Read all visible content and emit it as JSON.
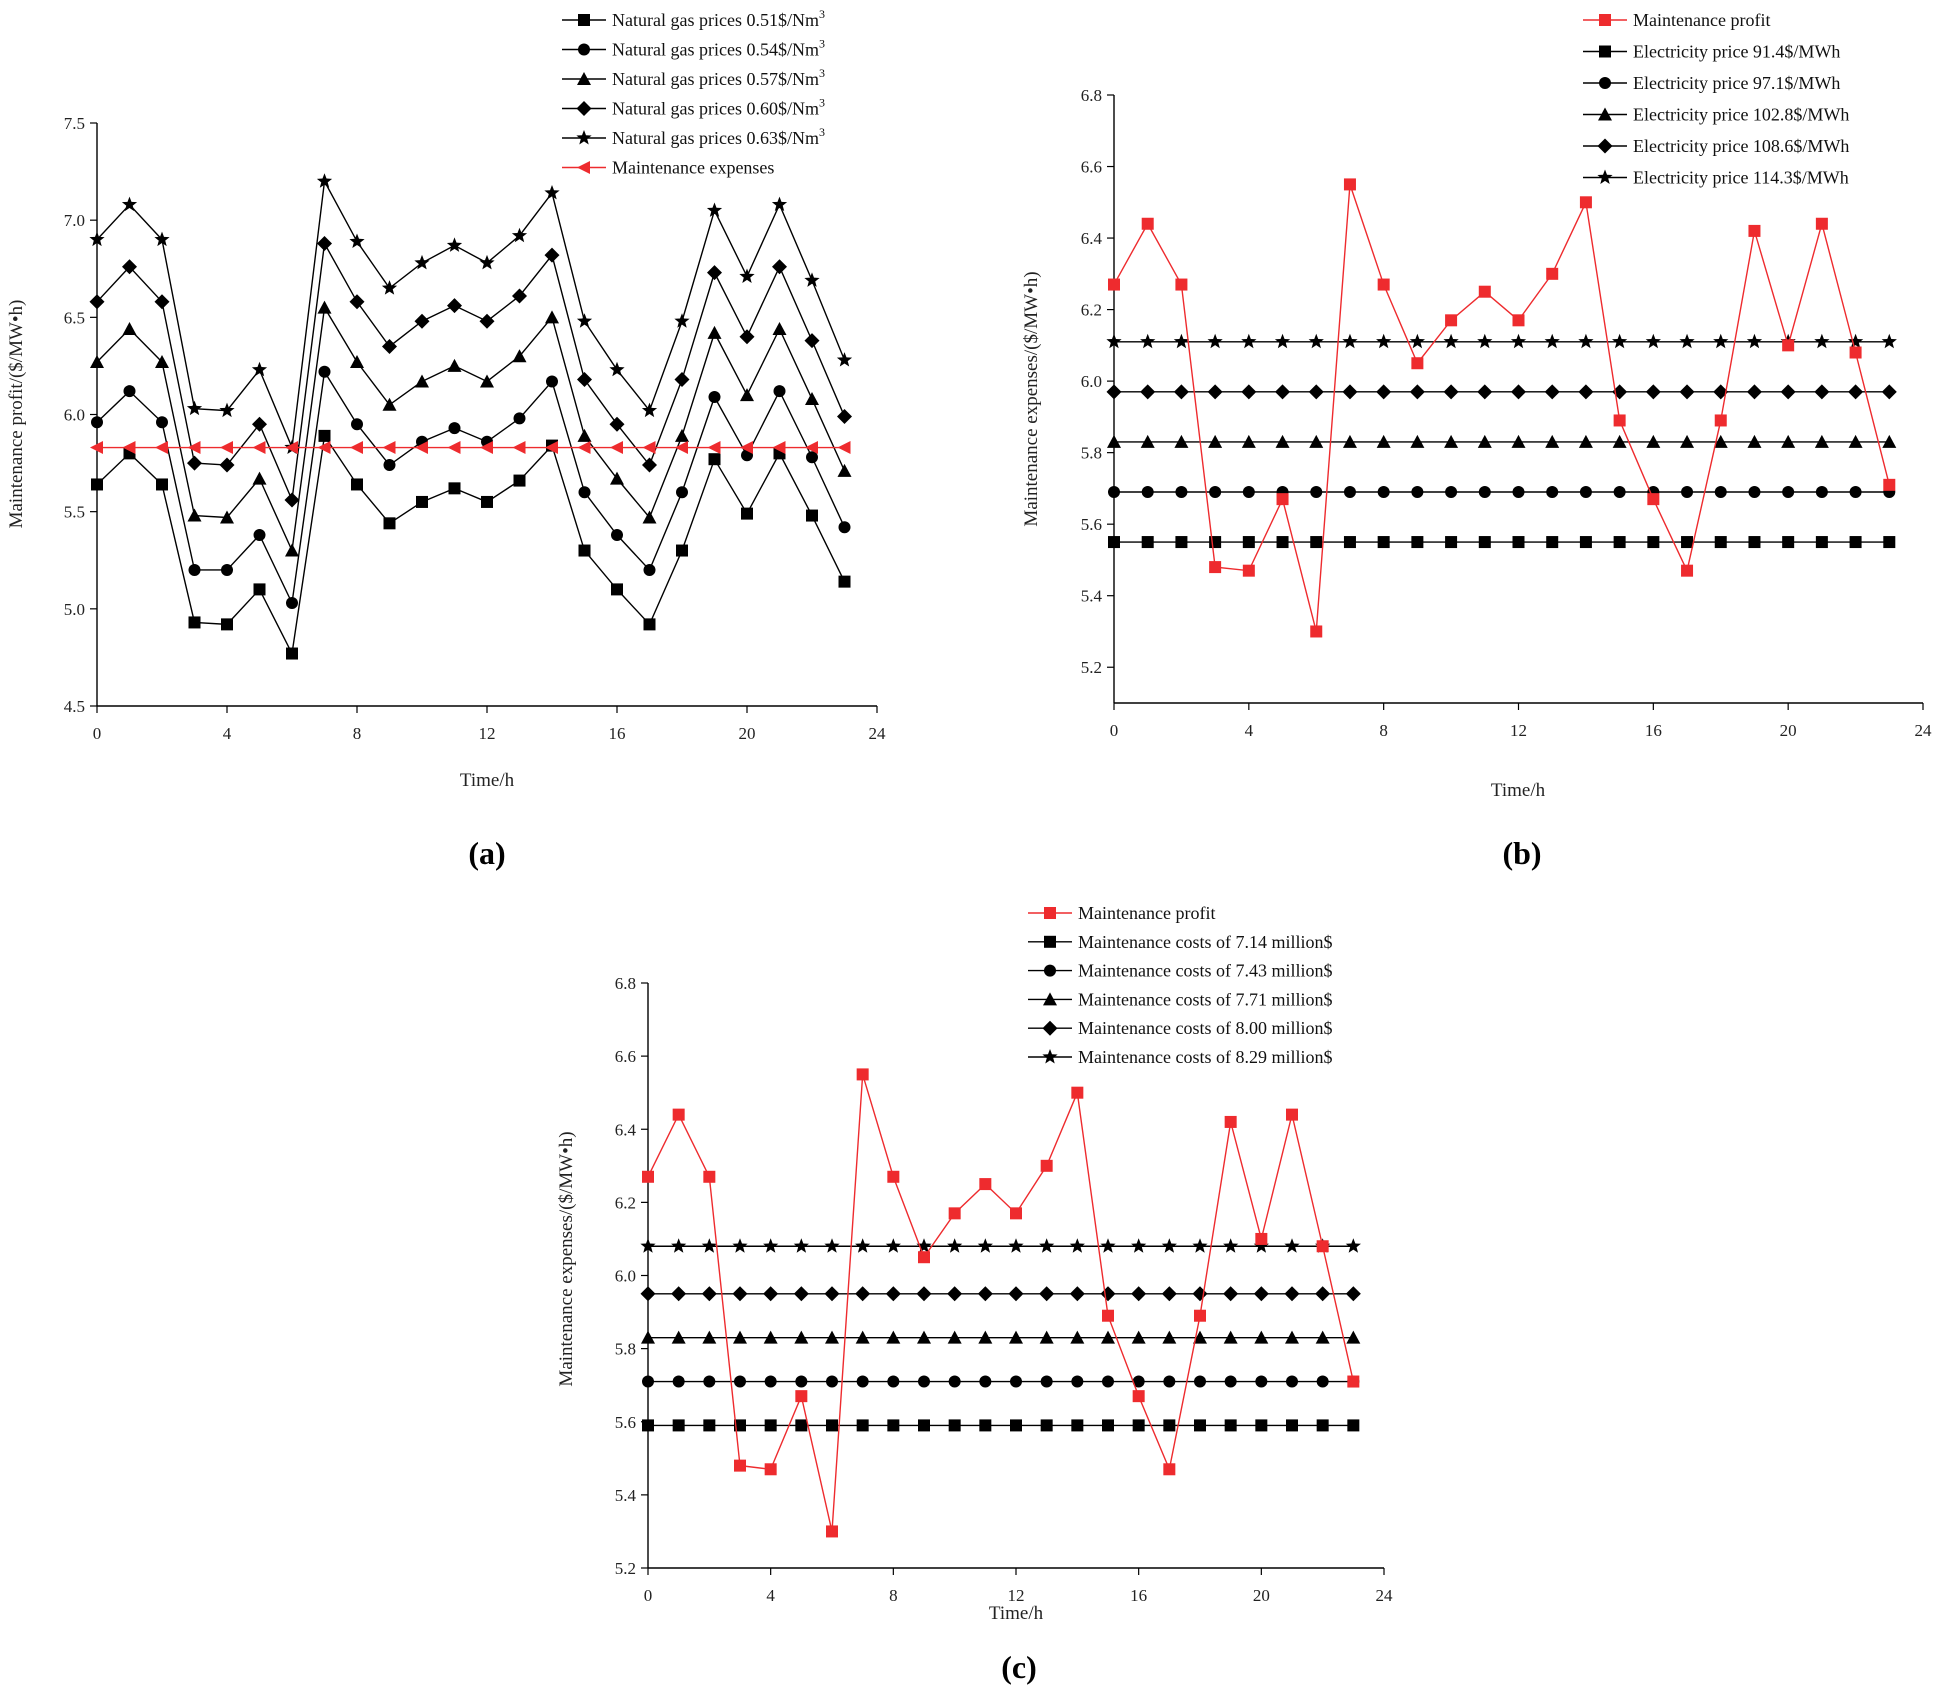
{
  "colors": {
    "black": "#000000",
    "red": "#ee2b2e"
  },
  "chart_data": [
    {
      "id": "a",
      "type": "line",
      "caption": "(a)",
      "xlabel": "Time/h",
      "ylabel": "Maintenance profit/($/MW•h)",
      "xlim": [
        0,
        24
      ],
      "ylim": [
        4.5,
        7.5
      ],
      "xticks": [
        "0",
        "4",
        "8",
        "12",
        "16",
        "20",
        "24"
      ],
      "yticks": [
        "4.5",
        "5.0",
        "5.5",
        "6.0",
        "6.5",
        "7.0",
        "7.5"
      ],
      "legend_position": "top",
      "x": [
        0,
        1,
        2,
        3,
        4,
        5,
        6,
        7,
        8,
        9,
        10,
        11,
        12,
        13,
        14,
        15,
        16,
        17,
        18,
        19,
        20,
        21,
        22,
        23
      ],
      "series": [
        {
          "name": "Natural gas prices 0.51$/Nm",
          "sup": "3",
          "marker": "square",
          "color": "#000000",
          "values": [
            5.64,
            5.8,
            5.64,
            4.93,
            4.92,
            5.1,
            4.77,
            5.89,
            5.64,
            5.44,
            5.55,
            5.62,
            5.55,
            5.66,
            5.84,
            5.3,
            5.1,
            4.92,
            5.3,
            5.77,
            5.49,
            5.8,
            5.48,
            5.14
          ]
        },
        {
          "name": "Natural gas prices 0.54$/Nm",
          "sup": "3",
          "marker": "circle",
          "color": "#000000",
          "values": [
            5.96,
            6.12,
            5.96,
            5.2,
            5.2,
            5.38,
            5.03,
            6.22,
            5.95,
            5.74,
            5.86,
            5.93,
            5.86,
            5.98,
            6.17,
            5.6,
            5.38,
            5.2,
            5.6,
            6.09,
            5.79,
            6.12,
            5.78,
            5.42
          ]
        },
        {
          "name": "Natural gas prices 0.57$/Nm",
          "sup": "3",
          "marker": "triangle",
          "color": "#000000",
          "values": [
            6.27,
            6.44,
            6.27,
            5.48,
            5.47,
            5.67,
            5.3,
            6.55,
            6.27,
            6.05,
            6.17,
            6.25,
            6.17,
            6.3,
            6.5,
            5.89,
            5.67,
            5.47,
            5.89,
            6.42,
            6.1,
            6.44,
            6.08,
            5.71
          ]
        },
        {
          "name": "Natural gas prices 0.60$/Nm",
          "sup": "3",
          "marker": "diamond",
          "color": "#000000",
          "values": [
            6.58,
            6.76,
            6.58,
            5.75,
            5.74,
            5.95,
            5.56,
            6.88,
            6.58,
            6.35,
            6.48,
            6.56,
            6.48,
            6.61,
            6.82,
            6.18,
            5.95,
            5.74,
            6.18,
            6.73,
            6.4,
            6.76,
            6.38,
            5.99
          ]
        },
        {
          "name": "Natural gas prices 0.63$/Nm",
          "sup": "3",
          "marker": "star",
          "color": "#000000",
          "values": [
            6.9,
            7.08,
            6.9,
            6.03,
            6.02,
            6.23,
            5.83,
            7.2,
            6.89,
            6.65,
            6.78,
            6.87,
            6.78,
            6.92,
            7.14,
            6.48,
            6.23,
            6.02,
            6.48,
            7.05,
            6.71,
            7.08,
            6.69,
            6.28
          ]
        },
        {
          "name": "Maintenance expenses",
          "sup": "",
          "marker": "triangle-left",
          "color": "#ee2b2e",
          "values": [
            5.83,
            5.83,
            5.83,
            5.83,
            5.83,
            5.83,
            5.83,
            5.83,
            5.83,
            5.83,
            5.83,
            5.83,
            5.83,
            5.83,
            5.83,
            5.83,
            5.83,
            5.83,
            5.83,
            5.83,
            5.83,
            5.83,
            5.83,
            5.83
          ]
        }
      ]
    },
    {
      "id": "b",
      "type": "line",
      "caption": "(b)",
      "xlabel": "Time/h",
      "ylabel": "Maintenance expenses/($/MW•h)",
      "xlim": [
        0,
        24
      ],
      "ylim": [
        5.1,
        6.8
      ],
      "xticks": [
        "0",
        "4",
        "8",
        "12",
        "16",
        "20",
        "24"
      ],
      "yticks": [
        "5.2",
        "5.4",
        "5.6",
        "5.8",
        "6.0",
        "6.2",
        "6.4",
        "6.6",
        "6.8"
      ],
      "legend_position": "top-right",
      "x": [
        0,
        1,
        2,
        3,
        4,
        5,
        6,
        7,
        8,
        9,
        10,
        11,
        12,
        13,
        14,
        15,
        16,
        17,
        18,
        19,
        20,
        21,
        22,
        23
      ],
      "series": [
        {
          "name": "Maintenance profit",
          "sup": "",
          "marker": "square",
          "color": "#ee2b2e",
          "values": [
            6.27,
            6.44,
            6.27,
            5.48,
            5.47,
            5.67,
            5.3,
            6.55,
            6.27,
            6.05,
            6.17,
            6.25,
            6.17,
            6.3,
            6.5,
            5.89,
            5.67,
            5.47,
            5.89,
            6.42,
            6.1,
            6.44,
            6.08,
            5.71
          ]
        },
        {
          "name": "Electricity price 91.4$/MWh",
          "sup": "",
          "marker": "square",
          "color": "#000000",
          "values": [
            5.55,
            5.55,
            5.55,
            5.55,
            5.55,
            5.55,
            5.55,
            5.55,
            5.55,
            5.55,
            5.55,
            5.55,
            5.55,
            5.55,
            5.55,
            5.55,
            5.55,
            5.55,
            5.55,
            5.55,
            5.55,
            5.55,
            5.55,
            5.55
          ]
        },
        {
          "name": "Electricity price 97.1$/MWh",
          "sup": "",
          "marker": "circle",
          "color": "#000000",
          "values": [
            5.69,
            5.69,
            5.69,
            5.69,
            5.69,
            5.69,
            5.69,
            5.69,
            5.69,
            5.69,
            5.69,
            5.69,
            5.69,
            5.69,
            5.69,
            5.69,
            5.69,
            5.69,
            5.69,
            5.69,
            5.69,
            5.69,
            5.69,
            5.69
          ]
        },
        {
          "name": "Electricity price 102.8$/MWh",
          "sup": "",
          "marker": "triangle",
          "color": "#000000",
          "values": [
            5.83,
            5.83,
            5.83,
            5.83,
            5.83,
            5.83,
            5.83,
            5.83,
            5.83,
            5.83,
            5.83,
            5.83,
            5.83,
            5.83,
            5.83,
            5.83,
            5.83,
            5.83,
            5.83,
            5.83,
            5.83,
            5.83,
            5.83,
            5.83
          ]
        },
        {
          "name": "Electricity price 108.6$/MWh",
          "sup": "",
          "marker": "diamond",
          "color": "#000000",
          "values": [
            5.97,
            5.97,
            5.97,
            5.97,
            5.97,
            5.97,
            5.97,
            5.97,
            5.97,
            5.97,
            5.97,
            5.97,
            5.97,
            5.97,
            5.97,
            5.97,
            5.97,
            5.97,
            5.97,
            5.97,
            5.97,
            5.97,
            5.97,
            5.97
          ]
        },
        {
          "name": "Electricity price 114.3$/MWh",
          "sup": "",
          "marker": "star",
          "color": "#000000",
          "values": [
            6.11,
            6.11,
            6.11,
            6.11,
            6.11,
            6.11,
            6.11,
            6.11,
            6.11,
            6.11,
            6.11,
            6.11,
            6.11,
            6.11,
            6.11,
            6.11,
            6.11,
            6.11,
            6.11,
            6.11,
            6.11,
            6.11,
            6.11,
            6.11
          ]
        }
      ]
    },
    {
      "id": "c",
      "type": "line",
      "caption": "(c)",
      "xlabel": "Time/h",
      "ylabel": "Maintenance expenses/($/MW•h)",
      "xlim": [
        0,
        24
      ],
      "ylim": [
        5.2,
        6.8
      ],
      "xticks": [
        "0",
        "4",
        "8",
        "12",
        "16",
        "20",
        "24"
      ],
      "yticks": [
        "5.2",
        "5.4",
        "5.6",
        "5.8",
        "6.0",
        "6.2",
        "6.4",
        "6.6",
        "6.8"
      ],
      "legend_position": "top-right",
      "x": [
        0,
        1,
        2,
        3,
        4,
        5,
        6,
        7,
        8,
        9,
        10,
        11,
        12,
        13,
        14,
        15,
        16,
        17,
        18,
        19,
        20,
        21,
        22,
        23
      ],
      "series": [
        {
          "name": "Maintenance profit",
          "sup": "",
          "marker": "square",
          "color": "#ee2b2e",
          "values": [
            6.27,
            6.44,
            6.27,
            5.48,
            5.47,
            5.67,
            5.3,
            6.55,
            6.27,
            6.05,
            6.17,
            6.25,
            6.17,
            6.3,
            6.5,
            5.89,
            5.67,
            5.47,
            5.89,
            6.42,
            6.1,
            6.44,
            6.08,
            5.71
          ]
        },
        {
          "name": "Maintenance costs of 7.14 million$",
          "sup": "",
          "marker": "square",
          "color": "#000000",
          "values": [
            5.59,
            5.59,
            5.59,
            5.59,
            5.59,
            5.59,
            5.59,
            5.59,
            5.59,
            5.59,
            5.59,
            5.59,
            5.59,
            5.59,
            5.59,
            5.59,
            5.59,
            5.59,
            5.59,
            5.59,
            5.59,
            5.59,
            5.59,
            5.59
          ]
        },
        {
          "name": "Maintenance costs of 7.43 million$",
          "sup": "",
          "marker": "circle",
          "color": "#000000",
          "values": [
            5.71,
            5.71,
            5.71,
            5.71,
            5.71,
            5.71,
            5.71,
            5.71,
            5.71,
            5.71,
            5.71,
            5.71,
            5.71,
            5.71,
            5.71,
            5.71,
            5.71,
            5.71,
            5.71,
            5.71,
            5.71,
            5.71,
            5.71,
            5.71
          ]
        },
        {
          "name": "Maintenance costs of 7.71 million$",
          "sup": "",
          "marker": "triangle",
          "color": "#000000",
          "values": [
            5.83,
            5.83,
            5.83,
            5.83,
            5.83,
            5.83,
            5.83,
            5.83,
            5.83,
            5.83,
            5.83,
            5.83,
            5.83,
            5.83,
            5.83,
            5.83,
            5.83,
            5.83,
            5.83,
            5.83,
            5.83,
            5.83,
            5.83,
            5.83
          ]
        },
        {
          "name": "Maintenance costs of 8.00 million$",
          "sup": "",
          "marker": "diamond",
          "color": "#000000",
          "values": [
            5.95,
            5.95,
            5.95,
            5.95,
            5.95,
            5.95,
            5.95,
            5.95,
            5.95,
            5.95,
            5.95,
            5.95,
            5.95,
            5.95,
            5.95,
            5.95,
            5.95,
            5.95,
            5.95,
            5.95,
            5.95,
            5.95,
            5.95,
            5.95
          ]
        },
        {
          "name": "Maintenance costs of 8.29 million$",
          "sup": "",
          "marker": "star",
          "color": "#000000",
          "values": [
            6.08,
            6.08,
            6.08,
            6.08,
            6.08,
            6.08,
            6.08,
            6.08,
            6.08,
            6.08,
            6.08,
            6.08,
            6.08,
            6.08,
            6.08,
            6.08,
            6.08,
            6.08,
            6.08,
            6.08,
            6.08,
            6.08,
            6.08,
            6.08
          ]
        }
      ]
    }
  ]
}
